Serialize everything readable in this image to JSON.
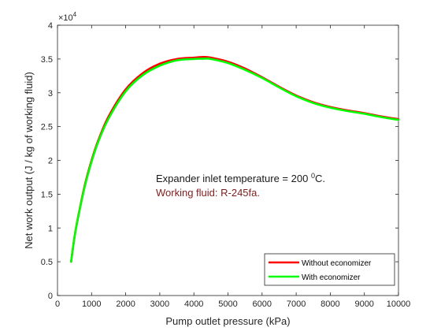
{
  "chart_data": {
    "type": "line",
    "xlabel": "Pump outlet pressure (kPa)",
    "ylabel": "Net work output (J / kg of working fluid)",
    "xlim": [
      0,
      10000
    ],
    "ylim": [
      0,
      40000
    ],
    "x_ticks": [
      0,
      1000,
      2000,
      3000,
      4000,
      5000,
      6000,
      7000,
      8000,
      9000,
      10000
    ],
    "x_tick_labels": [
      "0",
      "1000",
      "2000",
      "3000",
      "4000",
      "5000",
      "6000",
      "7000",
      "8000",
      "9000",
      "10000"
    ],
    "y_ticks": [
      0,
      5000,
      10000,
      15000,
      20000,
      25000,
      30000,
      35000,
      40000
    ],
    "y_tick_labels": [
      "0",
      "0.5",
      "1",
      "1.5",
      "2",
      "2.5",
      "3",
      "3.5",
      "4"
    ],
    "y_exponent": {
      "base": "×10",
      "power": "4"
    },
    "grid": false,
    "legend_position": "bottom-right",
    "series": [
      {
        "name": "Without economizer",
        "color": "#ff0000",
        "x": [
          400,
          500,
          600,
          800,
          1000,
          1200,
          1500,
          2000,
          2500,
          3000,
          3500,
          4000,
          4300,
          4500,
          5000,
          5500,
          6000,
          6500,
          7000,
          7500,
          8000,
          8500,
          9000,
          9500,
          10000
        ],
        "y": [
          5000,
          8700,
          11500,
          16300,
          20000,
          23000,
          26500,
          30500,
          32900,
          34300,
          35000,
          35200,
          35300,
          35200,
          34600,
          33600,
          32300,
          30900,
          29600,
          28600,
          27900,
          27400,
          27000,
          26500,
          26100
        ]
      },
      {
        "name": "With economizer",
        "color": "#00ff00",
        "x": [
          400,
          500,
          600,
          800,
          1000,
          1200,
          1500,
          2000,
          2500,
          3000,
          3500,
          4000,
          4300,
          4500,
          5000,
          5500,
          6000,
          6500,
          7000,
          7500,
          8000,
          8500,
          9000,
          9500,
          10000
        ],
        "y": [
          5000,
          8600,
          11400,
          16100,
          19800,
          22800,
          26200,
          30200,
          32600,
          34000,
          34800,
          35000,
          35050,
          35000,
          34400,
          33400,
          32200,
          30800,
          29500,
          28500,
          27800,
          27300,
          26900,
          26400,
          26000
        ]
      }
    ],
    "annotations": [
      {
        "text_before": "Expander inlet temperature = 200 ",
        "superscript": "0",
        "text_after": "C.",
        "color": "#1a1a1a"
      },
      {
        "text": "Working fluid: R-245fa.",
        "color": "#7f1d1d"
      }
    ]
  }
}
